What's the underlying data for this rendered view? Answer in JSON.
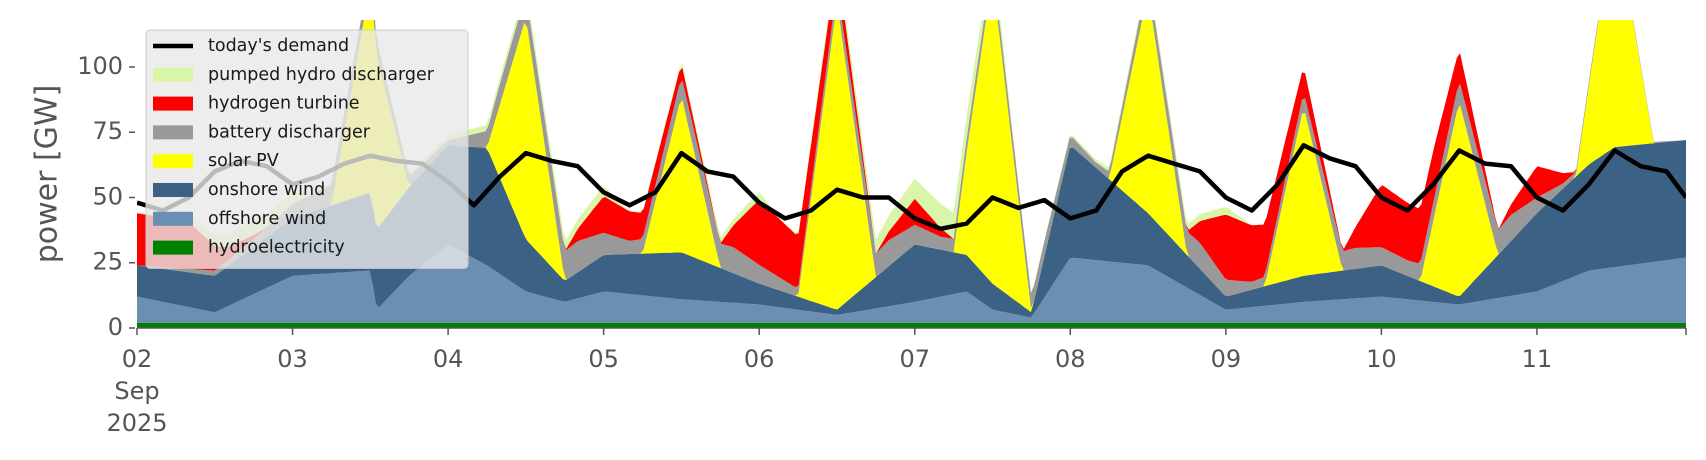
{
  "chart_data": {
    "type": "area",
    "ylabel": "power [GW]",
    "xlabel": "",
    "ylim": [
      0,
      118
    ],
    "yticks": [
      0,
      25,
      50,
      75,
      100
    ],
    "x_start": "2025-09-02",
    "x_end": "2025-09-11 23:00",
    "xticks": [
      {
        "date": "2025-09-02",
        "label": "02",
        "sublabel_1": "Sep",
        "sublabel_2": "2025"
      },
      {
        "date": "2025-09-03",
        "label": "03"
      },
      {
        "date": "2025-09-04",
        "label": "04"
      },
      {
        "date": "2025-09-05",
        "label": "05"
      },
      {
        "date": "2025-09-06",
        "label": "06"
      },
      {
        "date": "2025-09-07",
        "label": "07"
      },
      {
        "date": "2025-09-08",
        "label": "08"
      },
      {
        "date": "2025-09-09",
        "label": "09"
      },
      {
        "date": "2025-09-10",
        "label": "10"
      },
      {
        "date": "2025-09-11",
        "label": "11"
      }
    ],
    "legend_position": "top-left",
    "grid": false,
    "stack_order": [
      "hydroelectricity",
      "offshore wind",
      "onshore wind",
      "solar PV",
      "battery discharger",
      "hydrogen turbine",
      "pumped hydro discharger"
    ],
    "series": [
      {
        "name": "hydroelectricity",
        "color": "#008000",
        "points": [
          [
            "2025-09-02 00:00",
            2
          ],
          [
            "2025-09-05 00:00",
            2
          ],
          [
            "2025-09-08 00:00",
            2
          ],
          [
            "2025-09-11 23:00",
            2
          ]
        ]
      },
      {
        "name": "offshore wind",
        "color": "#6b8fb3",
        "points": [
          [
            "2025-09-02 00:00",
            10
          ],
          [
            "2025-09-02 12:00",
            4
          ],
          [
            "2025-09-03 00:00",
            18
          ],
          [
            "2025-09-03 12:00",
            20
          ],
          [
            "2025-09-03 13:00",
            5
          ],
          [
            "2025-09-03 18:00",
            18
          ],
          [
            "2025-09-04 00:00",
            30
          ],
          [
            "2025-09-04 06:00",
            22
          ],
          [
            "2025-09-04 12:00",
            12
          ],
          [
            "2025-09-04 18:00",
            8
          ],
          [
            "2025-09-05 00:00",
            12
          ],
          [
            "2025-09-05 12:00",
            9
          ],
          [
            "2025-09-06 00:00",
            7
          ],
          [
            "2025-09-06 12:00",
            3
          ],
          [
            "2025-09-07 00:00",
            8
          ],
          [
            "2025-09-07 08:00",
            12
          ],
          [
            "2025-09-07 12:00",
            5
          ],
          [
            "2025-09-07 18:00",
            2
          ],
          [
            "2025-09-08 00:00",
            25
          ],
          [
            "2025-09-08 12:00",
            22
          ],
          [
            "2025-09-09 00:00",
            5
          ],
          [
            "2025-09-09 12:00",
            8
          ],
          [
            "2025-09-10 00:00",
            10
          ],
          [
            "2025-09-10 12:00",
            7
          ],
          [
            "2025-09-11 00:00",
            12
          ],
          [
            "2025-09-11 08:00",
            20
          ],
          [
            "2025-09-11 23:00",
            25
          ]
        ]
      },
      {
        "name": "onshore wind",
        "color": "#3b6185",
        "points": [
          [
            "2025-09-02 00:00",
            12
          ],
          [
            "2025-09-02 12:00",
            14
          ],
          [
            "2025-09-03 00:00",
            22
          ],
          [
            "2025-09-03 12:00",
            30
          ],
          [
            "2025-09-04 00:00",
            38
          ],
          [
            "2025-09-04 06:00",
            45
          ],
          [
            "2025-09-04 12:00",
            20
          ],
          [
            "2025-09-04 18:00",
            8
          ],
          [
            "2025-09-05 00:00",
            14
          ],
          [
            "2025-09-05 12:00",
            18
          ],
          [
            "2025-09-06 00:00",
            8
          ],
          [
            "2025-09-06 12:00",
            2
          ],
          [
            "2025-09-07 00:00",
            22
          ],
          [
            "2025-09-07 12:00",
            10
          ],
          [
            "2025-09-07 18:00",
            2
          ],
          [
            "2025-09-08 00:00",
            43
          ],
          [
            "2025-09-08 12:00",
            20
          ],
          [
            "2025-09-09 00:00",
            5
          ],
          [
            "2025-09-09 12:00",
            10
          ],
          [
            "2025-09-10 00:00",
            12
          ],
          [
            "2025-09-10 12:00",
            3
          ],
          [
            "2025-09-11 00:00",
            30
          ],
          [
            "2025-09-11 12:00",
            46
          ],
          [
            "2025-09-11 23:00",
            45
          ]
        ]
      },
      {
        "name": "solar PV",
        "color": "#ffff00",
        "points": [
          [
            "2025-09-02 00:00",
            0
          ],
          [
            "2025-09-02 06:00",
            0
          ],
          [
            "2025-09-02 12:00",
            0
          ],
          [
            "2025-09-03 06:00",
            0
          ],
          [
            "2025-09-03 12:00",
            80
          ],
          [
            "2025-09-03 18:00",
            0
          ],
          [
            "2025-09-04 06:00",
            0
          ],
          [
            "2025-09-04 12:00",
            85
          ],
          [
            "2025-09-04 18:00",
            0
          ],
          [
            "2025-09-05 06:00",
            0
          ],
          [
            "2025-09-05 12:00",
            60
          ],
          [
            "2025-09-05 18:00",
            0
          ],
          [
            "2025-09-06 06:00",
            0
          ],
          [
            "2025-09-06 12:00",
            118
          ],
          [
            "2025-09-06 18:00",
            0
          ],
          [
            "2025-09-07 06:00",
            0
          ],
          [
            "2025-09-07 12:00",
            118
          ],
          [
            "2025-09-07 18:00",
            0
          ],
          [
            "2025-09-08 06:00",
            0
          ],
          [
            "2025-09-08 12:00",
            85
          ],
          [
            "2025-09-08 18:00",
            0
          ],
          [
            "2025-09-09 06:00",
            0
          ],
          [
            "2025-09-09 12:00",
            65
          ],
          [
            "2025-09-09 18:00",
            0
          ],
          [
            "2025-09-10 06:00",
            0
          ],
          [
            "2025-09-10 12:00",
            75
          ],
          [
            "2025-09-10 18:00",
            0
          ],
          [
            "2025-09-11 06:00",
            0
          ],
          [
            "2025-09-11 12:00",
            90
          ],
          [
            "2025-09-11 18:00",
            0
          ],
          [
            "2025-09-11 23:00",
            0
          ]
        ]
      },
      {
        "name": "battery discharger",
        "color": "#999999",
        "points": [
          [
            "2025-09-02 00:00",
            0
          ],
          [
            "2025-09-02 18:00",
            3
          ],
          [
            "2025-09-03 06:00",
            8
          ],
          [
            "2025-09-04 00:00",
            2
          ],
          [
            "2025-09-04 08:00",
            8
          ],
          [
            "2025-09-04 20:00",
            12
          ],
          [
            "2025-09-05 04:00",
            5
          ],
          [
            "2025-09-05 20:00",
            10
          ],
          [
            "2025-09-06 06:00",
            3
          ],
          [
            "2025-09-06 20:00",
            10
          ],
          [
            "2025-09-07 04:00",
            5
          ],
          [
            "2025-09-07 20:00",
            6
          ],
          [
            "2025-09-08 04:00",
            2
          ],
          [
            "2025-09-08 20:00",
            10
          ],
          [
            "2025-09-09 04:00",
            3
          ],
          [
            "2025-09-09 20:00",
            8
          ],
          [
            "2025-09-10 04:00",
            6
          ],
          [
            "2025-09-10 20:00",
            10
          ],
          [
            "2025-09-11 04:00",
            2
          ],
          [
            "2025-09-11 23:00",
            0
          ]
        ]
      },
      {
        "name": "hydrogen turbine",
        "color": "#ff0000",
        "points": [
          [
            "2025-09-02 00:00",
            20
          ],
          [
            "2025-09-02 08:00",
            18
          ],
          [
            "2025-09-02 14:00",
            5
          ],
          [
            "2025-09-02 20:00",
            0
          ],
          [
            "2025-09-04 18:00",
            0
          ],
          [
            "2025-09-05 00:00",
            14
          ],
          [
            "2025-09-05 06:00",
            10
          ],
          [
            "2025-09-05 18:00",
            0
          ],
          [
            "2025-09-06 00:00",
            25
          ],
          [
            "2025-09-06 06:00",
            20
          ],
          [
            "2025-09-06 18:00",
            0
          ],
          [
            "2025-09-07 00:00",
            10
          ],
          [
            "2025-09-07 06:00",
            0
          ],
          [
            "2025-09-08 18:00",
            0
          ],
          [
            "2025-09-09 00:00",
            25
          ],
          [
            "2025-09-09 06:00",
            20
          ],
          [
            "2025-09-09 18:00",
            0
          ],
          [
            "2025-09-10 00:00",
            24
          ],
          [
            "2025-09-10 08:00",
            20
          ],
          [
            "2025-09-10 18:00",
            0
          ],
          [
            "2025-09-11 00:00",
            12
          ],
          [
            "2025-09-11 06:00",
            0
          ],
          [
            "2025-09-11 23:00",
            0
          ]
        ]
      },
      {
        "name": "pumped hydro discharger",
        "color": "#d9f5a8",
        "points": [
          [
            "2025-09-02 00:00",
            0
          ],
          [
            "2025-09-02 18:00",
            6
          ],
          [
            "2025-09-03 00:00",
            4
          ],
          [
            "2025-09-03 06:00",
            0
          ],
          [
            "2025-09-05 00:00",
            4
          ],
          [
            "2025-09-05 04:00",
            0
          ],
          [
            "2025-09-06 00:00",
            3
          ],
          [
            "2025-09-06 04:00",
            0
          ],
          [
            "2025-09-07 06:00",
            10
          ],
          [
            "2025-09-07 12:00",
            6
          ],
          [
            "2025-09-07 16:00",
            0
          ],
          [
            "2025-09-09 00:00",
            3
          ],
          [
            "2025-09-09 04:00",
            0
          ],
          [
            "2025-09-11 23:00",
            0
          ]
        ]
      }
    ],
    "demand": {
      "name": "today's demand",
      "color": "#000000",
      "points": [
        [
          "2025-09-02 00:00",
          48
        ],
        [
          "2025-09-02 04:00",
          45
        ],
        [
          "2025-09-02 08:00",
          50
        ],
        [
          "2025-09-02 12:00",
          60
        ],
        [
          "2025-09-02 16:00",
          64
        ],
        [
          "2025-09-02 20:00",
          62
        ],
        [
          "2025-09-03 00:00",
          55
        ],
        [
          "2025-09-03 04:00",
          58
        ],
        [
          "2025-09-03 08:00",
          63
        ],
        [
          "2025-09-03 12:00",
          66
        ],
        [
          "2025-09-03 16:00",
          64
        ],
        [
          "2025-09-03 20:00",
          63
        ],
        [
          "2025-09-04 00:00",
          56
        ],
        [
          "2025-09-04 04:00",
          47
        ],
        [
          "2025-09-04 08:00",
          58
        ],
        [
          "2025-09-04 12:00",
          67
        ],
        [
          "2025-09-04 16:00",
          64
        ],
        [
          "2025-09-04 20:00",
          62
        ],
        [
          "2025-09-05 00:00",
          52
        ],
        [
          "2025-09-05 04:00",
          47
        ],
        [
          "2025-09-05 08:00",
          52
        ],
        [
          "2025-09-05 12:00",
          67
        ],
        [
          "2025-09-05 16:00",
          60
        ],
        [
          "2025-09-05 20:00",
          58
        ],
        [
          "2025-09-06 00:00",
          48
        ],
        [
          "2025-09-06 04:00",
          42
        ],
        [
          "2025-09-06 08:00",
          45
        ],
        [
          "2025-09-06 12:00",
          53
        ],
        [
          "2025-09-06 16:00",
          50
        ],
        [
          "2025-09-06 20:00",
          50
        ],
        [
          "2025-09-07 00:00",
          42
        ],
        [
          "2025-09-07 04:00",
          38
        ],
        [
          "2025-09-07 08:00",
          40
        ],
        [
          "2025-09-07 12:00",
          50
        ],
        [
          "2025-09-07 16:00",
          46
        ],
        [
          "2025-09-07 20:00",
          49
        ],
        [
          "2025-09-08 00:00",
          42
        ],
        [
          "2025-09-08 04:00",
          45
        ],
        [
          "2025-09-08 08:00",
          60
        ],
        [
          "2025-09-08 12:00",
          66
        ],
        [
          "2025-09-08 16:00",
          63
        ],
        [
          "2025-09-08 20:00",
          60
        ],
        [
          "2025-09-09 00:00",
          50
        ],
        [
          "2025-09-09 04:00",
          45
        ],
        [
          "2025-09-09 08:00",
          55
        ],
        [
          "2025-09-09 12:00",
          70
        ],
        [
          "2025-09-09 16:00",
          65
        ],
        [
          "2025-09-09 20:00",
          62
        ],
        [
          "2025-09-10 00:00",
          50
        ],
        [
          "2025-09-10 04:00",
          45
        ],
        [
          "2025-09-10 08:00",
          55
        ],
        [
          "2025-09-10 12:00",
          68
        ],
        [
          "2025-09-10 16:00",
          63
        ],
        [
          "2025-09-10 20:00",
          62
        ],
        [
          "2025-09-11 00:00",
          50
        ],
        [
          "2025-09-11 04:00",
          45
        ],
        [
          "2025-09-11 08:00",
          55
        ],
        [
          "2025-09-11 12:00",
          68
        ],
        [
          "2025-09-11 16:00",
          62
        ],
        [
          "2025-09-11 20:00",
          60
        ],
        [
          "2025-09-11 23:00",
          50
        ]
      ]
    },
    "legend": [
      {
        "label": "today's demand",
        "color": "#000000",
        "kind": "line"
      },
      {
        "label": "pumped hydro discharger",
        "color": "#d9f5a8",
        "kind": "patch"
      },
      {
        "label": "hydrogen turbine",
        "color": "#ff0000",
        "kind": "patch"
      },
      {
        "label": "battery discharger",
        "color": "#999999",
        "kind": "patch"
      },
      {
        "label": "solar PV",
        "color": "#ffff00",
        "kind": "patch"
      },
      {
        "label": "onshore wind",
        "color": "#3b6185",
        "kind": "patch"
      },
      {
        "label": "offshore wind",
        "color": "#6b8fb3",
        "kind": "patch"
      },
      {
        "label": "hydroelectricity",
        "color": "#008000",
        "kind": "patch"
      }
    ]
  }
}
